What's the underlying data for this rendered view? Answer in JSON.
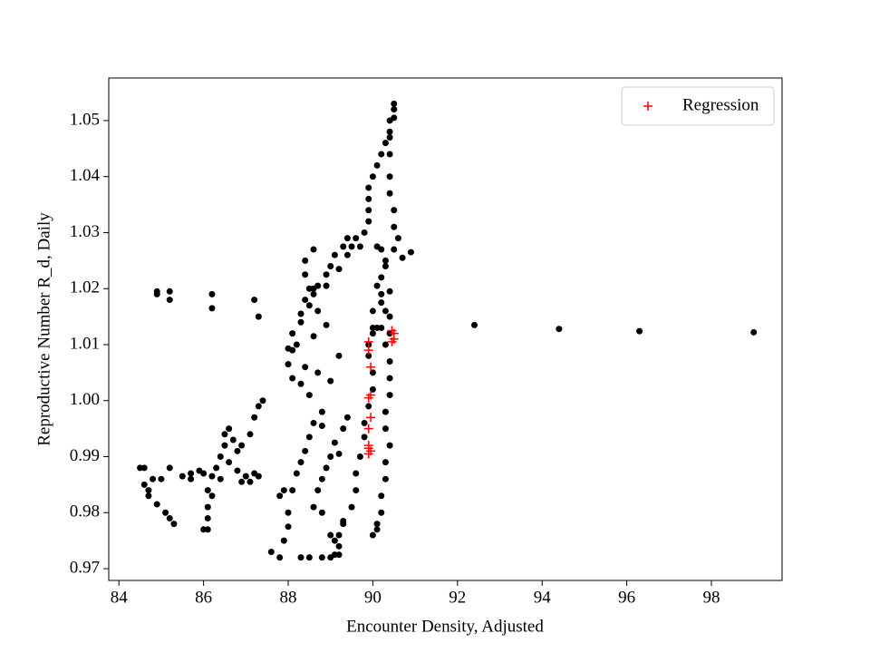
{
  "chart_data": {
    "type": "scatter",
    "xlabel": "Encounter Density, Adjusted",
    "ylabel": "Reproductive Number R_d, Daily",
    "xlim": [
      83.76,
      99.67
    ],
    "ylim": [
      0.9679,
      1.0576
    ],
    "xticks": [
      84,
      86,
      88,
      90,
      92,
      94,
      96,
      98
    ],
    "yticks": [
      0.97,
      0.98,
      0.99,
      {
        "value": 1,
        "label": "1.00"
      },
      1.01,
      1.02,
      1.03,
      1.04,
      1.05
    ],
    "legend": "upper right",
    "series": [
      {
        "color": "#000000",
        "marker": "o",
        "x": [
          84.5,
          84.6,
          84.6,
          84.7,
          84.7,
          84.8,
          84.9,
          85.1,
          85.2,
          85.3,
          85.0,
          85.2,
          85.5,
          85.7,
          85.9,
          86.0,
          86.2,
          86.4,
          86.1,
          86.2,
          86.1,
          86.1,
          86.0,
          86.1,
          86.3,
          86.4,
          86.5,
          86.5,
          86.6,
          86.7,
          86.8,
          86.6,
          86.8,
          87.0,
          87.1,
          87.2,
          87.3,
          86.9,
          87.1,
          87.2,
          87.3,
          87.4,
          85.7,
          86.9,
          84.9,
          84.9,
          85.2,
          85.2,
          86.2,
          86.2,
          87.2,
          87.3,
          87.6,
          87.8,
          87.9,
          88.0,
          88.0,
          87.8,
          87.9,
          88.1,
          88.2,
          88.3,
          88.4,
          88.5,
          88.6,
          88.8,
          88.5,
          88.3,
          88.1,
          88.0,
          88.1,
          88.0,
          88.2,
          88.1,
          88.3,
          88.3,
          88.4,
          88.6,
          88.7,
          88.9,
          89.0,
          89.1,
          89.3,
          89.5,
          89.4,
          89.7,
          89.8,
          89.9,
          89.9,
          89.9,
          89.9,
          90.0,
          90.1,
          90.2,
          90.3,
          90.4,
          90.4,
          90.5,
          90.5,
          90.5,
          90.4,
          90.4,
          90.4,
          90.4,
          90.5,
          90.5,
          90.6,
          90.5,
          90.3,
          90.2,
          90.2,
          90.3,
          90.2,
          90.3,
          90.4,
          90.4,
          90.4,
          90.3,
          90.3,
          90.4,
          90.3,
          90.3,
          90.2,
          90.2,
          90.1,
          90.0,
          90.1,
          90.2,
          90.3,
          90.7,
          90.9,
          90.1,
          90.4,
          90.2,
          90.4,
          90.0,
          90.1,
          90.4,
          90.0,
          90.0,
          89.9,
          89.9,
          90.0,
          90.0,
          89.9,
          89.8,
          89.8,
          89.7,
          89.6,
          89.6,
          89.5,
          89.3,
          89.2,
          89.2,
          89.1,
          88.3,
          88.5,
          88.8,
          89.0,
          89.2,
          89.1,
          89.3,
          89.0,
          88.8,
          88.6,
          88.7,
          88.8,
          88.9,
          89.0,
          89.1,
          89.3,
          89.4,
          89.0,
          88.7,
          88.6,
          88.9,
          88.7,
          88.5,
          88.5,
          88.4,
          88.4,
          88.6,
          88.6,
          88.9,
          89.2,
          89.4,
          89.6,
          90.1,
          89.2,
          88.4,
          88.8,
          89.2,
          92.4,
          94.4,
          96.3,
          99.0
        ],
        "values": [
          0.988,
          0.988,
          0.985,
          0.984,
          0.983,
          0.986,
          0.9815,
          0.98,
          0.979,
          0.978,
          0.986,
          0.988,
          0.9865,
          0.987,
          0.9875,
          0.987,
          0.9865,
          0.986,
          0.984,
          0.983,
          0.981,
          0.979,
          0.977,
          0.977,
          0.988,
          0.99,
          0.992,
          0.994,
          0.995,
          0.993,
          0.991,
          0.989,
          0.9875,
          0.9865,
          0.9855,
          0.987,
          0.9865,
          0.992,
          0.994,
          0.997,
          0.999,
          1.0,
          0.986,
          0.9855,
          1.0195,
          1.019,
          1.0195,
          1.018,
          1.019,
          1.0165,
          1.018,
          1.015,
          0.973,
          0.972,
          0.975,
          0.9775,
          0.98,
          0.983,
          0.984,
          0.984,
          0.987,
          0.989,
          0.991,
          0.9935,
          0.996,
          0.998,
          1.001,
          1.003,
          1.004,
          1.0065,
          1.009,
          1.0093,
          1.01,
          1.012,
          1.014,
          1.0155,
          1.018,
          1.019,
          1.0205,
          1.0225,
          1.024,
          1.026,
          1.0275,
          1.0275,
          1.029,
          1.0275,
          1.03,
          1.032,
          1.034,
          1.036,
          1.038,
          1.04,
          1.042,
          1.044,
          1.046,
          1.048,
          1.05,
          1.052,
          1.053,
          1.0505,
          1.047,
          1.044,
          1.04,
          1.037,
          1.034,
          1.031,
          1.029,
          1.027,
          1.025,
          1.022,
          1.019,
          1.016,
          1.013,
          1.01,
          1.007,
          1.004,
          1.001,
          0.998,
          0.995,
          0.992,
          0.989,
          0.986,
          0.983,
          0.98,
          0.978,
          0.976,
          0.977,
          1.027,
          1.024,
          1.0255,
          1.0265,
          1.0205,
          1.0195,
          1.0175,
          1.015,
          1.012,
          1.013,
          1.012,
          1.016,
          1.013,
          1.01,
          1.008,
          1.005,
          1.002,
          0.999,
          0.996,
          0.9935,
          0.99,
          0.987,
          0.984,
          0.981,
          0.978,
          0.976,
          0.974,
          0.9725,
          0.972,
          0.972,
          0.972,
          0.972,
          0.9725,
          0.975,
          0.9785,
          0.976,
          0.98,
          0.981,
          0.984,
          0.986,
          0.988,
          0.99,
          0.9925,
          0.995,
          0.997,
          1.0035,
          1.005,
          1.0115,
          1.0135,
          1.016,
          1.017,
          1.02,
          1.0225,
          1.025,
          1.027,
          1.02,
          1.0205,
          1.0235,
          1.026,
          1.029,
          1.0275,
          1.008,
          1.006,
          0.9955,
          0.9905,
          1.0135,
          1.0128,
          1.0124,
          1.0122
        ]
      },
      {
        "name": "Regression",
        "color": "#ff0000",
        "marker": "+",
        "x": [
          89.9,
          89.9,
          89.95,
          89.95,
          89.9,
          89.95,
          89.9,
          89.9,
          89.9,
          89.95,
          89.9,
          90.45,
          90.5,
          90.5,
          90.45
        ],
        "values": [
          1.0105,
          1.009,
          1.006,
          1.001,
          1.0005,
          0.997,
          0.995,
          0.992,
          0.9915,
          0.991,
          0.9905,
          1.0125,
          1.012,
          1.011,
          1.0105
        ]
      }
    ]
  }
}
